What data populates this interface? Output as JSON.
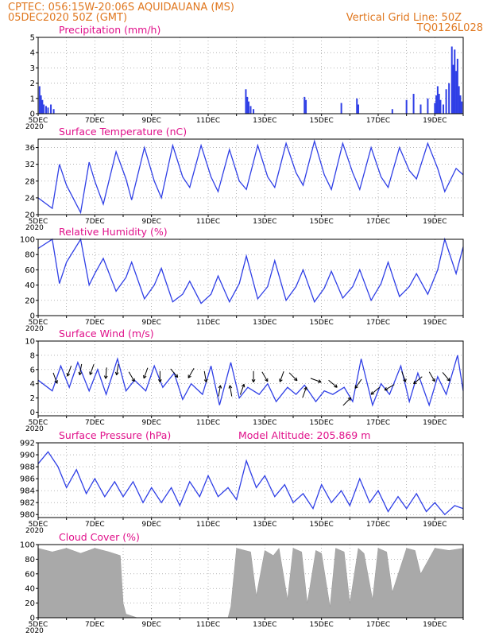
{
  "header": {
    "line1": "CPTEC:   056:15W-20:06S   AQUIDAUANA (MS)",
    "line2": "05DEC2020 50Z (GMT)",
    "right1": "Vertical Grid Line: 50Z",
    "right2": "TQ0126L028"
  },
  "x_axis": {
    "labels": [
      "5DEC",
      "7DEC",
      "9DEC",
      "11DEC",
      "13DEC",
      "15DEC",
      "17DEC",
      "19DEC"
    ],
    "year_label": "2020"
  },
  "colors": {
    "line": "#2f3fe6",
    "bar": "#2f3fe6",
    "cloud": "#a9a9a9",
    "title": "#e0108a",
    "header": "#e07820",
    "arrow": "#000000"
  },
  "chart_data": [
    {
      "type": "bar",
      "title": "Precipitation (mm/h)",
      "xlim": [
        0,
        15
      ],
      "ylim": [
        0,
        5
      ],
      "yticks": [
        0,
        1,
        2,
        3,
        4,
        5
      ],
      "grid": true,
      "x": [
        0.05,
        0.1,
        0.15,
        0.2,
        0.28,
        0.35,
        0.45,
        0.55,
        7.33,
        7.38,
        7.43,
        7.5,
        7.6,
        9.4,
        9.45,
        10.7,
        11.25,
        11.3,
        12.5,
        13.0,
        13.25,
        13.5,
        13.75,
        14.0,
        14.05,
        14.1,
        14.15,
        14.2,
        14.3,
        14.4,
        14.5,
        14.6,
        14.65,
        14.7,
        14.75,
        14.8,
        14.85,
        14.9,
        14.95
      ],
      "values": [
        1.8,
        1.2,
        0.9,
        0.6,
        0.5,
        0.4,
        0.6,
        0.3,
        1.6,
        1.1,
        0.8,
        0.5,
        0.3,
        1.1,
        0.9,
        0.7,
        1.0,
        0.6,
        0.3,
        0.9,
        1.3,
        0.6,
        1.0,
        0.7,
        1.2,
        1.8,
        1.3,
        0.9,
        0.6,
        1.6,
        2.0,
        4.4,
        3.2,
        4.2,
        2.8,
        3.6,
        1.8,
        1.2,
        0.8
      ]
    },
    {
      "type": "line",
      "title": "Surface Temperature (nC)",
      "xlim": [
        0,
        15
      ],
      "ylim": [
        20,
        38
      ],
      "yticks": [
        20,
        24,
        28,
        32,
        36
      ],
      "grid": true,
      "x": [
        0.0,
        0.5,
        0.75,
        1.0,
        1.5,
        1.8,
        2.0,
        2.3,
        2.75,
        3.1,
        3.3,
        3.75,
        4.1,
        4.35,
        4.75,
        5.1,
        5.35,
        5.75,
        6.1,
        6.35,
        6.75,
        7.1,
        7.35,
        7.75,
        8.1,
        8.35,
        8.75,
        9.1,
        9.35,
        9.75,
        10.1,
        10.35,
        10.75,
        11.1,
        11.35,
        11.75,
        12.1,
        12.35,
        12.75,
        13.1,
        13.35,
        13.75,
        14.1,
        14.35,
        14.75,
        15.0
      ],
      "values": [
        24.0,
        21.5,
        32.0,
        27.0,
        20.5,
        32.5,
        28.0,
        22.5,
        35.0,
        28.5,
        23.5,
        36.0,
        28.0,
        24.0,
        36.5,
        29.0,
        26.5,
        36.5,
        29.0,
        25.5,
        35.5,
        28.0,
        26.0,
        36.5,
        29.0,
        26.5,
        37.0,
        30.0,
        27.0,
        37.5,
        29.5,
        26.0,
        37.0,
        30.0,
        26.0,
        36.0,
        29.0,
        26.5,
        36.0,
        30.5,
        28.5,
        37.0,
        31.0,
        25.5,
        31.0,
        29.5
      ]
    },
    {
      "type": "line",
      "title": "Relative Humidity (%)",
      "xlim": [
        0,
        15
      ],
      "ylim": [
        0,
        100
      ],
      "yticks": [
        0,
        20,
        40,
        60,
        80,
        100
      ],
      "grid": true,
      "x": [
        0.0,
        0.5,
        0.75,
        1.0,
        1.5,
        1.8,
        2.0,
        2.3,
        2.75,
        3.1,
        3.3,
        3.75,
        4.1,
        4.35,
        4.75,
        5.1,
        5.35,
        5.75,
        6.1,
        6.35,
        6.75,
        7.1,
        7.35,
        7.75,
        8.1,
        8.35,
        8.75,
        9.1,
        9.35,
        9.75,
        10.1,
        10.35,
        10.75,
        11.1,
        11.35,
        11.75,
        12.1,
        12.35,
        12.75,
        13.1,
        13.35,
        13.75,
        14.1,
        14.35,
        14.75,
        15.0
      ],
      "values": [
        88.0,
        100.0,
        42.0,
        70.0,
        100.0,
        40.0,
        55.0,
        75.0,
        32.0,
        50.0,
        70.0,
        22.0,
        40.0,
        62.0,
        18.0,
        28.0,
        45.0,
        16.0,
        28.0,
        52.0,
        18.0,
        42.0,
        78.0,
        22.0,
        38.0,
        72.0,
        20.0,
        38.0,
        60.0,
        18.0,
        36.0,
        58.0,
        23.0,
        38.0,
        60.0,
        20.0,
        42.0,
        70.0,
        25.0,
        38.0,
        55.0,
        28.0,
        60.0,
        100.0,
        55.0,
        90.0
      ]
    },
    {
      "type": "line",
      "title": "Surface Wind (m/s)",
      "xlim": [
        0,
        15
      ],
      "ylim": [
        -0.5,
        10
      ],
      "yticks": [
        0,
        2,
        4,
        6,
        8,
        10
      ],
      "grid": true,
      "x": [
        0.0,
        0.5,
        0.8,
        1.1,
        1.4,
        1.8,
        2.1,
        2.4,
        2.8,
        3.1,
        3.4,
        3.8,
        4.1,
        4.4,
        4.8,
        5.1,
        5.4,
        5.8,
        6.1,
        6.4,
        6.8,
        7.1,
        7.4,
        7.8,
        8.1,
        8.4,
        8.8,
        9.1,
        9.4,
        9.8,
        10.1,
        10.4,
        10.8,
        11.1,
        11.4,
        11.8,
        12.1,
        12.4,
        12.8,
        13.1,
        13.4,
        13.8,
        14.1,
        14.4,
        14.8,
        15.0
      ],
      "values": [
        4.5,
        3.0,
        6.5,
        3.5,
        7.0,
        3.0,
        6.0,
        2.5,
        7.5,
        3.0,
        4.5,
        3.0,
        6.5,
        3.5,
        5.5,
        1.8,
        4.0,
        2.5,
        6.5,
        1.0,
        7.0,
        2.0,
        3.5,
        2.5,
        4.0,
        1.5,
        3.5,
        2.5,
        3.8,
        1.5,
        3.0,
        2.5,
        3.5,
        1.5,
        7.5,
        1.0,
        4.0,
        2.5,
        6.5,
        1.5,
        5.5,
        1.0,
        5.0,
        2.5,
        8.0,
        3.0
      ]
    },
    {
      "type": "line",
      "title": "Surface Pressure (hPa)",
      "annotation": "Model Altitude: 205.869 m",
      "xlim": [
        0,
        15
      ],
      "ylim": [
        979.5,
        992
      ],
      "yticks": [
        980,
        982,
        984,
        986,
        988,
        990,
        992
      ],
      "grid": true,
      "x": [
        0.0,
        0.35,
        0.7,
        1.0,
        1.35,
        1.7,
        2.0,
        2.35,
        2.7,
        3.0,
        3.35,
        3.7,
        4.0,
        4.35,
        4.7,
        5.0,
        5.35,
        5.7,
        6.0,
        6.35,
        6.7,
        7.0,
        7.35,
        7.7,
        8.0,
        8.35,
        8.7,
        9.0,
        9.35,
        9.7,
        10.0,
        10.35,
        10.7,
        11.0,
        11.35,
        11.7,
        12.0,
        12.35,
        12.7,
        13.0,
        13.35,
        13.7,
        14.0,
        14.35,
        14.7,
        15.0
      ],
      "values": [
        988.5,
        990.5,
        988.0,
        984.5,
        987.5,
        983.5,
        986.0,
        983.0,
        985.5,
        983.0,
        985.5,
        982.0,
        984.5,
        982.0,
        984.5,
        981.5,
        985.5,
        983.0,
        986.5,
        983.0,
        984.5,
        982.5,
        989.0,
        984.5,
        986.5,
        983.0,
        985.0,
        982.0,
        983.5,
        981.0,
        985.0,
        982.0,
        984.0,
        981.5,
        986.0,
        982.0,
        984.0,
        980.5,
        983.0,
        981.0,
        983.5,
        980.5,
        982.0,
        980.0,
        981.5,
        981.0
      ]
    },
    {
      "type": "area",
      "title": "Cloud Cover (%)",
      "xlim": [
        0,
        15
      ],
      "ylim": [
        0,
        100
      ],
      "yticks": [
        0,
        20,
        40,
        60,
        80,
        100
      ],
      "grid": true,
      "x": [
        0.0,
        0.5,
        1.0,
        1.5,
        2.0,
        2.5,
        2.9,
        3.0,
        3.1,
        3.5,
        4.0,
        5.0,
        6.0,
        6.7,
        6.8,
        7.0,
        7.5,
        7.7,
        8.0,
        8.3,
        8.5,
        8.8,
        9.0,
        9.3,
        9.5,
        9.8,
        10.0,
        10.3,
        10.5,
        10.8,
        11.0,
        11.3,
        11.5,
        11.8,
        12.0,
        12.3,
        12.5,
        13.0,
        13.3,
        13.5,
        14.0,
        14.5,
        15.0
      ],
      "values": [
        95.0,
        90.0,
        95.0,
        88.0,
        95.0,
        90.0,
        85.0,
        20.0,
        5.0,
        0.0,
        0.0,
        0.0,
        0.0,
        0.0,
        15.0,
        95.0,
        90.0,
        30.0,
        92.0,
        85.0,
        95.0,
        25.0,
        95.0,
        90.0,
        20.0,
        92.0,
        88.0,
        15.0,
        95.0,
        90.0,
        20.0,
        95.0,
        88.0,
        25.0,
        95.0,
        90.0,
        35.0,
        95.0,
        92.0,
        60.0,
        95.0,
        92.0,
        95.0
      ]
    }
  ],
  "wind_arrows": [
    {
      "x": 0.6,
      "y": 4.8,
      "dir": 160
    },
    {
      "x": 1.1,
      "y": 5.8,
      "dir": 200
    },
    {
      "x": 1.5,
      "y": 6.0,
      "dir": 190
    },
    {
      "x": 1.9,
      "y": 6.0,
      "dir": 200
    },
    {
      "x": 2.4,
      "y": 5.5,
      "dir": 185
    },
    {
      "x": 2.8,
      "y": 6.0,
      "dir": 190
    },
    {
      "x": 3.3,
      "y": 5.0,
      "dir": 150
    },
    {
      "x": 3.8,
      "y": 5.5,
      "dir": 200
    },
    {
      "x": 4.3,
      "y": 5.0,
      "dir": 180
    },
    {
      "x": 4.8,
      "y": 5.5,
      "dir": 140
    },
    {
      "x": 5.4,
      "y": 5.5,
      "dir": 210
    },
    {
      "x": 5.9,
      "y": 5.0,
      "dir": 170
    },
    {
      "x": 6.4,
      "y": 3.0,
      "dir": 10
    },
    {
      "x": 6.8,
      "y": 3.0,
      "dir": 350
    },
    {
      "x": 7.2,
      "y": 3.2,
      "dir": 20
    },
    {
      "x": 7.6,
      "y": 5.0,
      "dir": 180
    },
    {
      "x": 8.0,
      "y": 5.0,
      "dir": 150
    },
    {
      "x": 8.6,
      "y": 5.0,
      "dir": 200
    },
    {
      "x": 9.0,
      "y": 5.0,
      "dir": 135
    },
    {
      "x": 9.4,
      "y": 2.8,
      "dir": 20
    },
    {
      "x": 9.8,
      "y": 4.5,
      "dir": 110
    },
    {
      "x": 10.4,
      "y": 4.0,
      "dir": 130
    },
    {
      "x": 10.9,
      "y": 1.5,
      "dir": 45
    },
    {
      "x": 11.3,
      "y": 4.0,
      "dir": 215
    },
    {
      "x": 11.9,
      "y": 3.0,
      "dir": 230
    },
    {
      "x": 12.4,
      "y": 3.5,
      "dir": 240
    },
    {
      "x": 12.9,
      "y": 5.0,
      "dir": 160
    },
    {
      "x": 13.4,
      "y": 4.5,
      "dir": 230
    },
    {
      "x": 13.9,
      "y": 5.0,
      "dir": 150
    },
    {
      "x": 14.4,
      "y": 5.0,
      "dir": 140
    }
  ]
}
